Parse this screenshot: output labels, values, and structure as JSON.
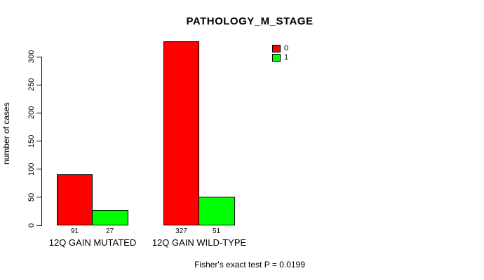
{
  "chart_data": {
    "type": "bar",
    "title": "PATHOLOGY_M_STAGE",
    "ylabel": "number of cases",
    "xlabel": "",
    "categories": [
      "12Q GAIN MUTATED",
      "12Q GAIN WILD-TYPE"
    ],
    "series": [
      {
        "name": "0",
        "color": "#ff0000",
        "values": [
          91,
          327
        ]
      },
      {
        "name": "1",
        "color": "#00ff00",
        "values": [
          27,
          51
        ]
      }
    ],
    "bar_value_labels": [
      [
        "91",
        "27"
      ],
      [
        "327",
        "51"
      ]
    ],
    "yticks": [
      0,
      50,
      100,
      150,
      200,
      250,
      300
    ],
    "ylim": [
      0,
      327
    ],
    "grid": false,
    "legend_position": "top-right",
    "footer": "Fisher's exact test P = 0.0199",
    "colors": {
      "background": "#ffffff",
      "text": "#000000",
      "axis": "#000000"
    }
  }
}
